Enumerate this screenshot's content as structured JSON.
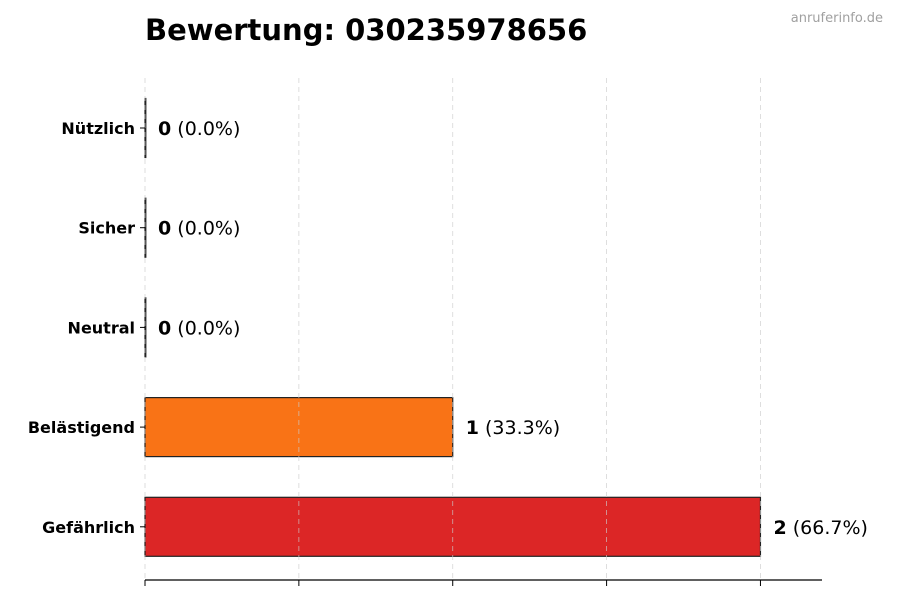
{
  "title": "Bewertung: 030235978656",
  "watermark": "anruferinfo.de",
  "chart_data": {
    "type": "bar",
    "orientation": "horizontal",
    "title": "Bewertung: 030235978656",
    "xlabel": "",
    "ylabel": "",
    "categories": [
      "Nützlich",
      "Sicher",
      "Neutral",
      "Belästigend",
      "Gefährlich"
    ],
    "values": [
      0,
      0,
      0,
      1,
      2
    ],
    "labels": [
      "(0.0%)",
      "(0.0%)",
      "(0.0%)",
      "(33.3%)",
      "(66.7%)"
    ],
    "colors": [
      "#22c55e",
      "#3b82f6",
      "#9ca3af",
      "#f97316",
      "#dc2626"
    ],
    "xlim": [
      0,
      2.2
    ],
    "xticks": [
      0,
      0.5,
      1,
      1.5,
      2
    ],
    "grid": "x dashed",
    "legend": "none"
  }
}
